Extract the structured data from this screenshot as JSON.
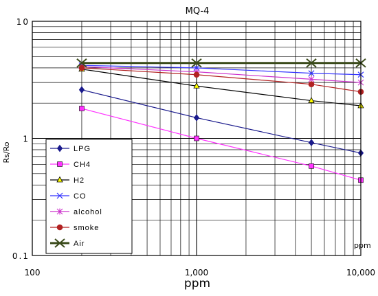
{
  "chart_data": {
    "type": "line",
    "title": "MQ-4",
    "xlabel": "ppm",
    "ylabel": "Rs/Ro",
    "corner_label": "ppm",
    "xscale": "log",
    "yscale": "log",
    "xlim": [
      100,
      10000
    ],
    "ylim": [
      0.1,
      10
    ],
    "grid": true,
    "legend_position": "bottom-left",
    "x_ticks": [
      {
        "value": 100,
        "label": "100"
      },
      {
        "value": 1000,
        "label": "1,000"
      },
      {
        "value": 10000,
        "label": "10,000"
      }
    ],
    "y_ticks": [
      {
        "value": 10,
        "label": "10"
      },
      {
        "value": 1,
        "label": "1"
      },
      {
        "value": 0.1,
        "label": "0.1"
      }
    ],
    "x": [
      200,
      1000,
      5000,
      10000
    ],
    "series": [
      {
        "name": "LPG",
        "color": "#1a1a8c",
        "marker": "diamond",
        "values": [
          2.6,
          1.5,
          0.92,
          0.75
        ]
      },
      {
        "name": "CH4",
        "color": "#ff33ff",
        "marker": "square",
        "values": [
          1.8,
          1.0,
          0.58,
          0.44
        ]
      },
      {
        "name": "H2",
        "color": "#000000",
        "marker": "triangle",
        "values": [
          3.9,
          2.8,
          2.1,
          1.9
        ]
      },
      {
        "name": "CO",
        "color": "#3333ff",
        "marker": "x",
        "values": [
          4.2,
          4.0,
          3.6,
          3.5
        ]
      },
      {
        "name": "alcohol",
        "color": "#cc33cc",
        "marker": "asterisk",
        "values": [
          4.1,
          3.7,
          3.2,
          3.0
        ]
      },
      {
        "name": "smoke",
        "color": "#b22222",
        "marker": "circle",
        "values": [
          4.0,
          3.5,
          2.9,
          2.5
        ]
      },
      {
        "name": "Air",
        "color": "#3a4a1a",
        "marker": "bigx",
        "values": [
          4.4,
          4.4,
          4.4,
          4.4
        ]
      }
    ]
  }
}
